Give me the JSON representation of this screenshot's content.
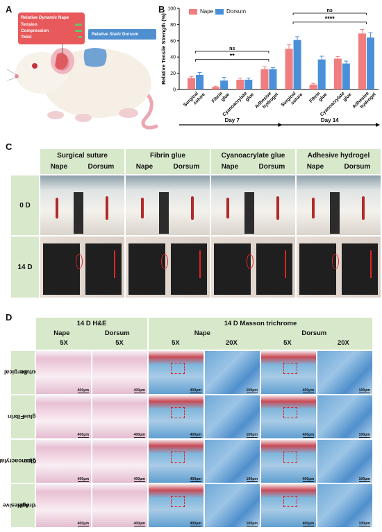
{
  "panel_labels": {
    "a": "A",
    "b": "B",
    "c": "C",
    "d": "D"
  },
  "panel_a": {
    "nape_box": {
      "title_prefix": "Relative ",
      "title_italic": "Dynamic",
      "title_suffix": " Nape",
      "rows": [
        "Tension",
        "Compression",
        "Twist"
      ]
    },
    "dorsum_box": {
      "prefix": "Relative ",
      "italic": "Static",
      "suffix": " Dorsum"
    }
  },
  "chart_data": {
    "type": "bar",
    "ylabel": "Relative Tensile Strength (%)",
    "ylim": [
      0,
      100
    ],
    "yticks": [
      0,
      20,
      40,
      60,
      80,
      100
    ],
    "categories": [
      "Surgical suture",
      "Fibrin glue",
      "Cyanoacrylate glue",
      "Adhesive hydrogel",
      "Surgical suture",
      "Fibrin glue",
      "Cyanoacrylate glue",
      "Adhesive hydrogel"
    ],
    "category_lines": [
      [
        "Surgical",
        "suture"
      ],
      [
        "Fibrin",
        "glue"
      ],
      [
        "Cyanoacrylate",
        "glue"
      ],
      [
        "Adhesive",
        "hydrogel"
      ],
      [
        "Surgical",
        "suture"
      ],
      [
        "Fibrin",
        "glue"
      ],
      [
        "Cyanoacrylate",
        "glue"
      ],
      [
        "Adhesive",
        "hydrogel"
      ]
    ],
    "groups": [
      "Day 7",
      "Day 14"
    ],
    "series": [
      {
        "name": "Nape",
        "color": "#f07d7f",
        "values": [
          14,
          3,
          12,
          25,
          50,
          6,
          38,
          69
        ],
        "errors": [
          2,
          1,
          2,
          3,
          5,
          1.5,
          2.5,
          5
        ]
      },
      {
        "name": "Dorsum",
        "color": "#4a90d9",
        "values": [
          18,
          11,
          12,
          25,
          61,
          37,
          32,
          64
        ],
        "errors": [
          3,
          4,
          2,
          2,
          4,
          4,
          3,
          6
        ]
      }
    ],
    "significance": [
      {
        "label": "**",
        "from": 0,
        "to": 3,
        "y": 37
      },
      {
        "label": "ns",
        "from": 0,
        "to": 3,
        "y": 47
      },
      {
        "label": "****",
        "from": 4,
        "to": 7,
        "y": 83
      },
      {
        "label": "ns",
        "from": 4,
        "to": 7,
        "y": 94
      }
    ]
  },
  "panel_c": {
    "treatments": [
      "Surgical suture",
      "Fibrin glue",
      "Cyanoacrylate glue",
      "Adhesive hydrogel"
    ],
    "sites": [
      "Nape",
      "Dorsum"
    ],
    "timepoints": [
      "0 D",
      "14 D"
    ]
  },
  "panel_d": {
    "group_he": "14 D H&E",
    "group_masson": "14 D  Masson trichrome",
    "site_nape": "Nape",
    "site_dorsum": "Dorsum",
    "mag_5x": "5X",
    "mag_20x": "20X",
    "rows": [
      [
        "Surgical",
        "suture"
      ],
      [
        "Fibrin",
        "glue"
      ],
      [
        "Cyanoacrylate",
        "glue"
      ],
      [
        "Adhesive",
        "hydrogel"
      ]
    ],
    "scale_5x": "400μm",
    "scale_20x": "100μm"
  }
}
